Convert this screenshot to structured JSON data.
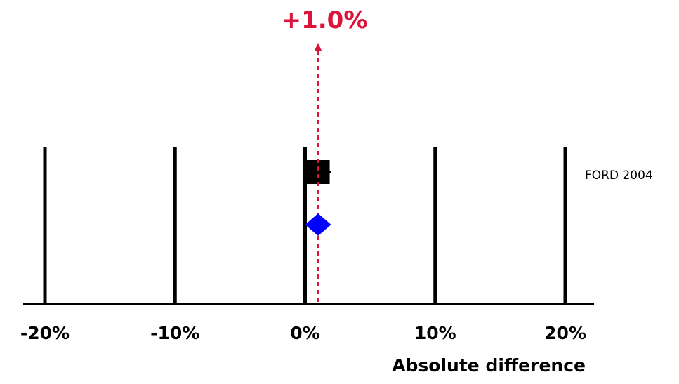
{
  "chart_data": {
    "type": "scatter",
    "xlabel": "Absolute difference",
    "xlim": [
      -20,
      20
    ],
    "x_ticks": [
      -20,
      -10,
      0,
      10,
      20
    ],
    "x_tick_labels": [
      "-20%",
      "-10%",
      "0%",
      "10%",
      "20%"
    ],
    "grid": true,
    "studies": [
      {
        "label": "FORD 2004",
        "estimate": 1.0,
        "ci_low": 0.0,
        "ci_high": 2.0
      }
    ],
    "pooled": {
      "estimate": 1.0,
      "ci_low": 0.0,
      "ci_high": 2.0,
      "label": "+1.0%"
    },
    "colors": {
      "study_marker": "#000000",
      "pooled_diamond": "#0000ff",
      "pooled_line": "#dc143c",
      "grid": "#000000",
      "axis": "#000000"
    }
  }
}
